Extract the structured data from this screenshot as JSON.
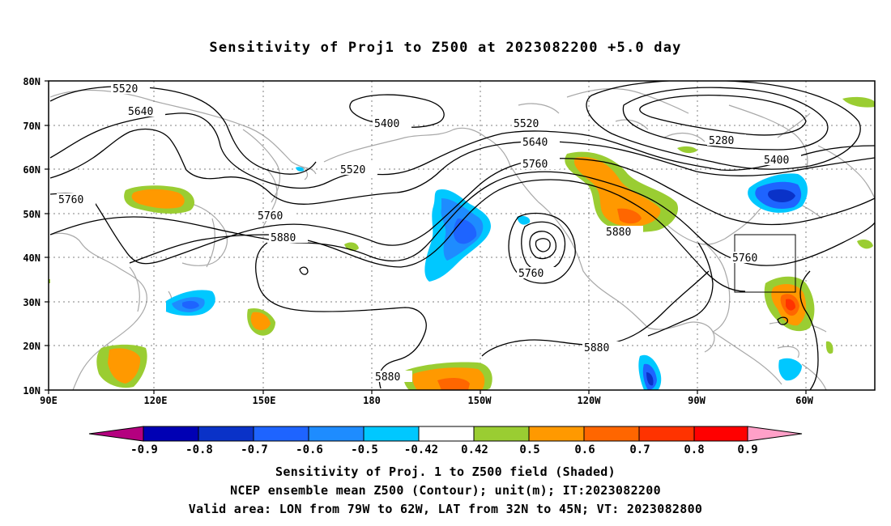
{
  "title": "Sensitivity of Proj1 to Z500 at 2023082200 +5.0 day",
  "axes": {
    "lat_labels": [
      "80N",
      "70N",
      "60N",
      "50N",
      "40N",
      "30N",
      "20N",
      "10N"
    ],
    "lon_labels": [
      "90E",
      "120E",
      "150E",
      "180",
      "150W",
      "120W",
      "90W",
      "60W"
    ]
  },
  "contours": {
    "c5520a": "5520",
    "c5640a": "5640",
    "c5400a": "5400",
    "c5520b": "5520",
    "c5520c": "5520",
    "c5640b": "5640",
    "c5760a": "5760",
    "c5280": "5280",
    "c5400b": "5400",
    "c5760b": "5760",
    "c5760c": "5760",
    "c5880a": "5880",
    "c5760d": "5760",
    "c5880b": "5880",
    "c5760e": "5760",
    "c5880c": "5880",
    "c5880d": "5880"
  },
  "colorbar": {
    "labels": [
      "-0.9",
      "-0.8",
      "-0.7",
      "-0.6",
      "-0.5",
      "-0.42",
      "0.42",
      "0.5",
      "0.6",
      "0.7",
      "0.8",
      "0.9"
    ],
    "colors": [
      "#b4007f",
      "#0000b4",
      "#0a32c8",
      "#1e64ff",
      "#1e8cff",
      "#00c8ff",
      "#ffffff",
      "#9acd32",
      "#ff9900",
      "#ff6600",
      "#ff3300",
      "#ff0000",
      "#ffa0c8"
    ]
  },
  "notes": {
    "line1": "Sensitivity of Proj. 1 to Z500 field (Shaded)",
    "line2": "NCEP ensemble mean Z500 (Contour); unit(m); IT:2023082200",
    "line3": "Valid area: LON from 79W to 62W, LAT from 32N to 45N; VT: 2023082800"
  }
}
